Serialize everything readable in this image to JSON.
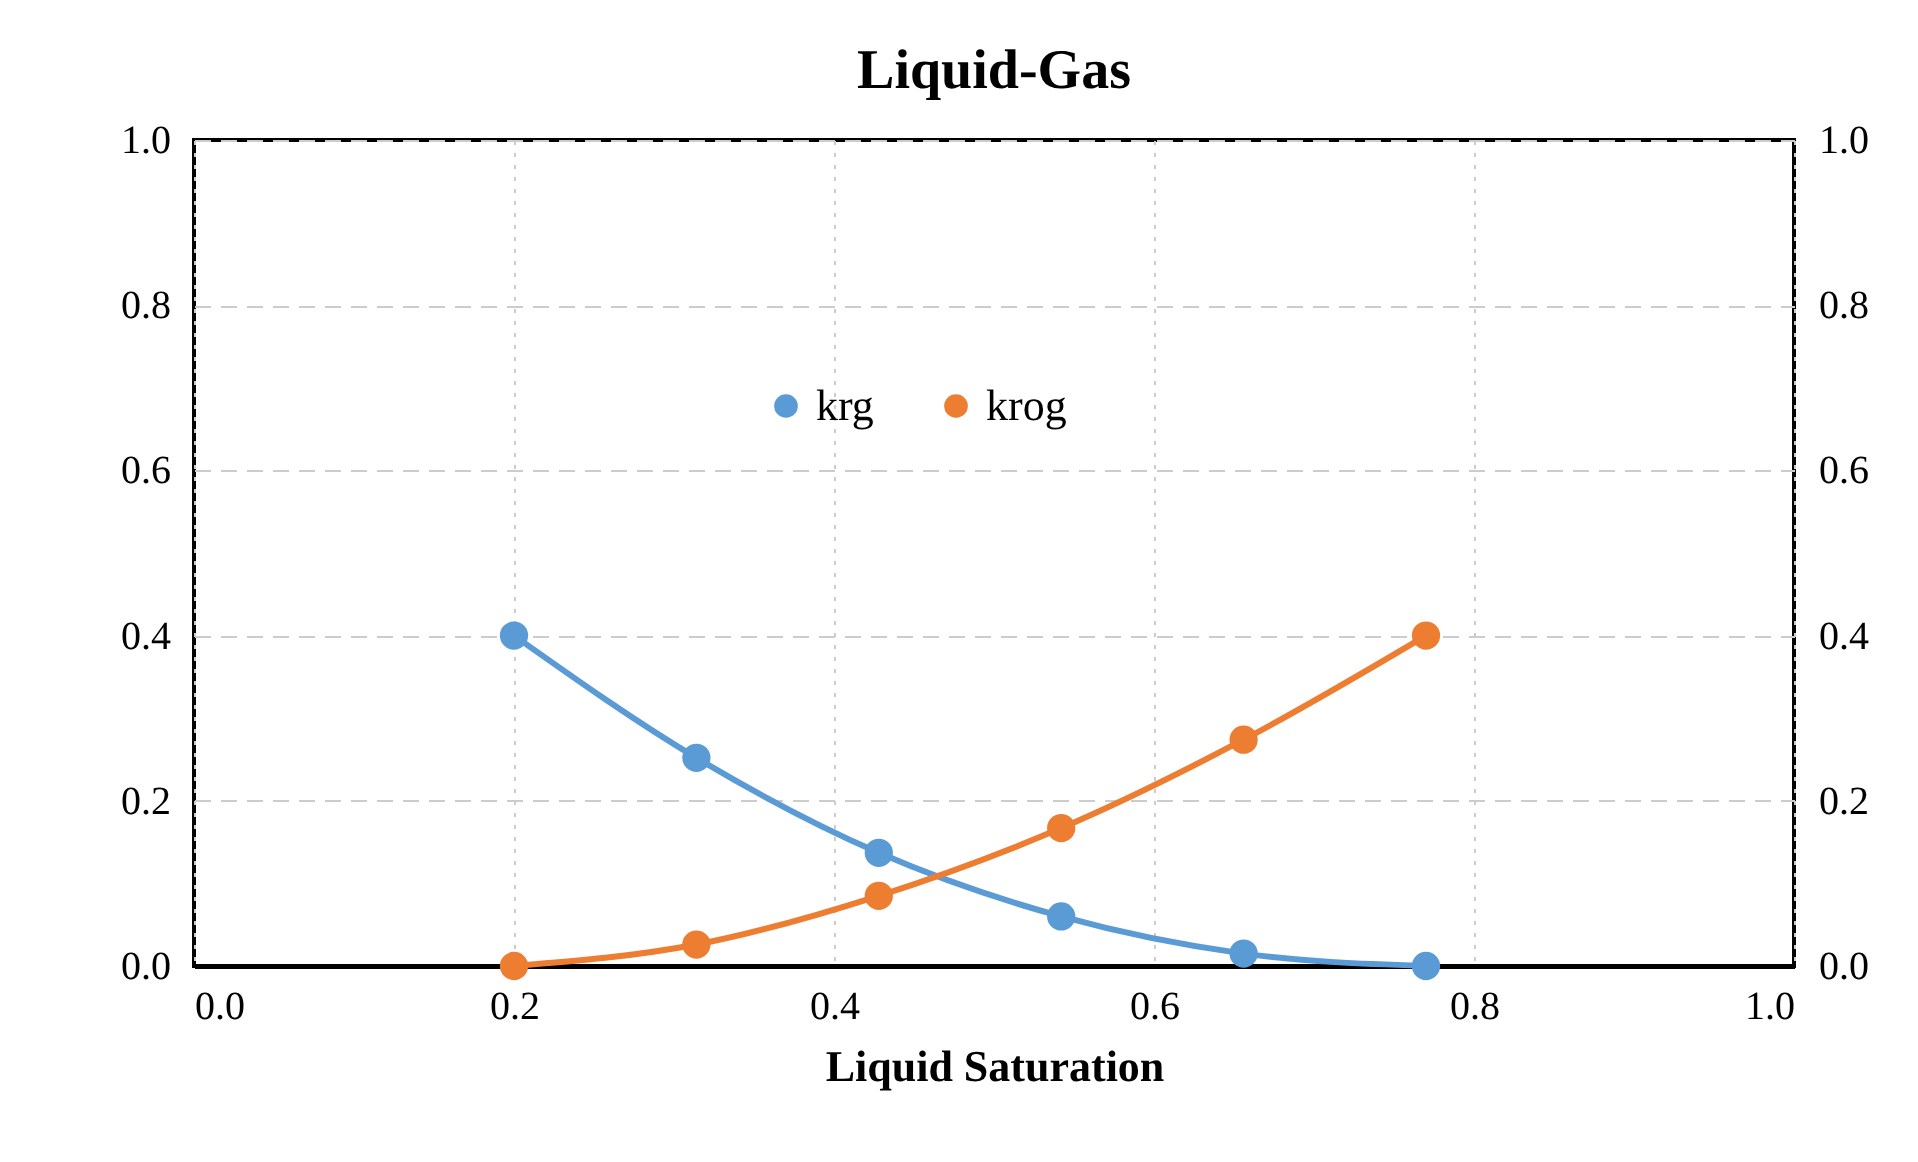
{
  "chart_data": {
    "type": "line",
    "title": "Liquid-Gas",
    "xlabel": "Liquid Saturation",
    "x": [
      0.2,
      0.314,
      0.428,
      0.542,
      0.656,
      0.77
    ],
    "series": [
      {
        "name": "krg",
        "color": "#5b9bd5",
        "values": [
          0.4,
          0.252,
          0.137,
          0.06,
          0.015,
          0
        ]
      },
      {
        "name": "krog",
        "color": "#ed7d31",
        "values": [
          0,
          0.026,
          0.085,
          0.167,
          0.274,
          0.4
        ]
      }
    ],
    "xlim": [
      0,
      1
    ],
    "xticks": [
      {
        "value": 0,
        "label": "0.0"
      },
      0.2,
      0.4,
      0.6,
      0.8,
      {
        "value": 1,
        "label": "1.0"
      }
    ],
    "ylim": [
      0,
      1
    ],
    "yticks": [
      {
        "value": 0,
        "label": "0.0"
      },
      0.2,
      0.4,
      0.6,
      0.8,
      {
        "value": 1,
        "label": "1.0"
      }
    ],
    "y2lim": [
      0,
      1
    ],
    "y2ticks": [
      {
        "value": 0,
        "label": "0.0"
      },
      0.2,
      0.4,
      0.6,
      0.8,
      {
        "value": 1,
        "label": "1.0"
      }
    ],
    "grid": true,
    "legend": "top",
    "marker": "circle",
    "line_style": "solid"
  }
}
